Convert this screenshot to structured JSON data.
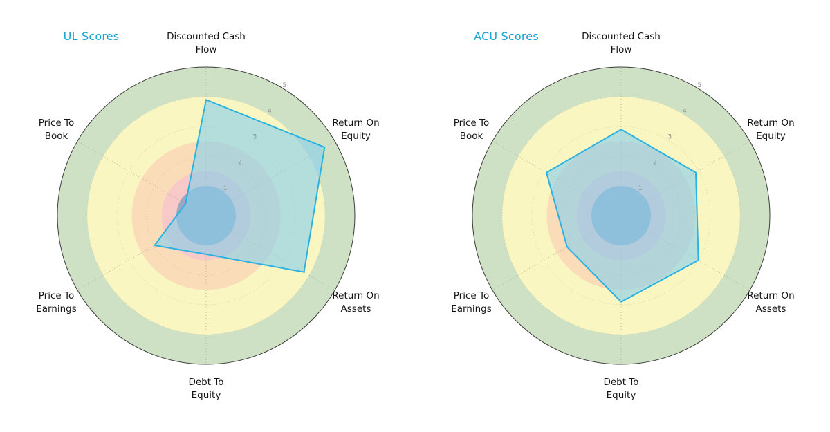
{
  "page": {
    "background": "#ffffff"
  },
  "chart_data": [
    {
      "type": "radar",
      "title": "UL Scores",
      "title_color": "#17a3d1",
      "categories": [
        "Discounted Cash Flow",
        "Return On Equity",
        "Return On Assets",
        "Debt To Equity",
        "Price To Earnings",
        "Price To Book"
      ],
      "category_lines": [
        [
          "Discounted Cash",
          "Flow"
        ],
        [
          "Return On",
          "Equity"
        ],
        [
          "Return On",
          "Assets"
        ],
        [
          "Debt To",
          "Equity"
        ],
        [
          "Price To",
          "Earnings"
        ],
        [
          "Price To",
          "Book"
        ]
      ],
      "values": [
        3.9,
        4.6,
        3.8,
        1.3,
        2.0,
        0.8
      ],
      "r_ticks": [
        1,
        2,
        3,
        4,
        5
      ],
      "r_max": 5,
      "r_label_angle_deg": 30,
      "grid": "dotted-spokes",
      "legend": "none",
      "bands": [
        {
          "from": 0,
          "to": 1.5,
          "color": "#f7c9c9"
        },
        {
          "from": 1.5,
          "to": 2.5,
          "color": "#fadcb8"
        },
        {
          "from": 2.5,
          "to": 4,
          "color": "#faf6c1"
        },
        {
          "from": 4,
          "to": 5,
          "color": "#cfe1c5"
        }
      ],
      "center_disc": {
        "radius": 1,
        "color": "#5b93c0",
        "opacity": 0.6
      },
      "series_fill": "#87ceeb",
      "series_fill_opacity": 0.62,
      "series_stroke": "#29b2e2"
    },
    {
      "type": "radar",
      "title": "ACU Scores",
      "title_color": "#17a3d1",
      "categories": [
        "Discounted Cash Flow",
        "Return On Equity",
        "Return On Assets",
        "Debt To Equity",
        "Price To Earnings",
        "Price To Book"
      ],
      "category_lines": [
        [
          "Discounted Cash",
          "Flow"
        ],
        [
          "Return On",
          "Equity"
        ],
        [
          "Return On",
          "Assets"
        ],
        [
          "Debt To",
          "Equity"
        ],
        [
          "Price To",
          "Earnings"
        ],
        [
          "Price To",
          "Book"
        ]
      ],
      "values": [
        2.9,
        2.9,
        3.0,
        2.9,
        2.1,
        2.9
      ],
      "r_ticks": [
        1,
        2,
        3,
        4,
        5
      ],
      "r_max": 5,
      "r_label_angle_deg": 30,
      "grid": "dotted-spokes",
      "legend": "none",
      "bands": [
        {
          "from": 0,
          "to": 1.5,
          "color": "#f7c9c9"
        },
        {
          "from": 1.5,
          "to": 2.5,
          "color": "#fadcb8"
        },
        {
          "from": 2.5,
          "to": 4,
          "color": "#faf6c1"
        },
        {
          "from": 4,
          "to": 5,
          "color": "#cfe1c5"
        }
      ],
      "center_disc": {
        "radius": 1,
        "color": "#5b93c0",
        "opacity": 0.6
      },
      "series_fill": "#87ceeb",
      "series_fill_opacity": 0.62,
      "series_stroke": "#29b2e2"
    }
  ]
}
